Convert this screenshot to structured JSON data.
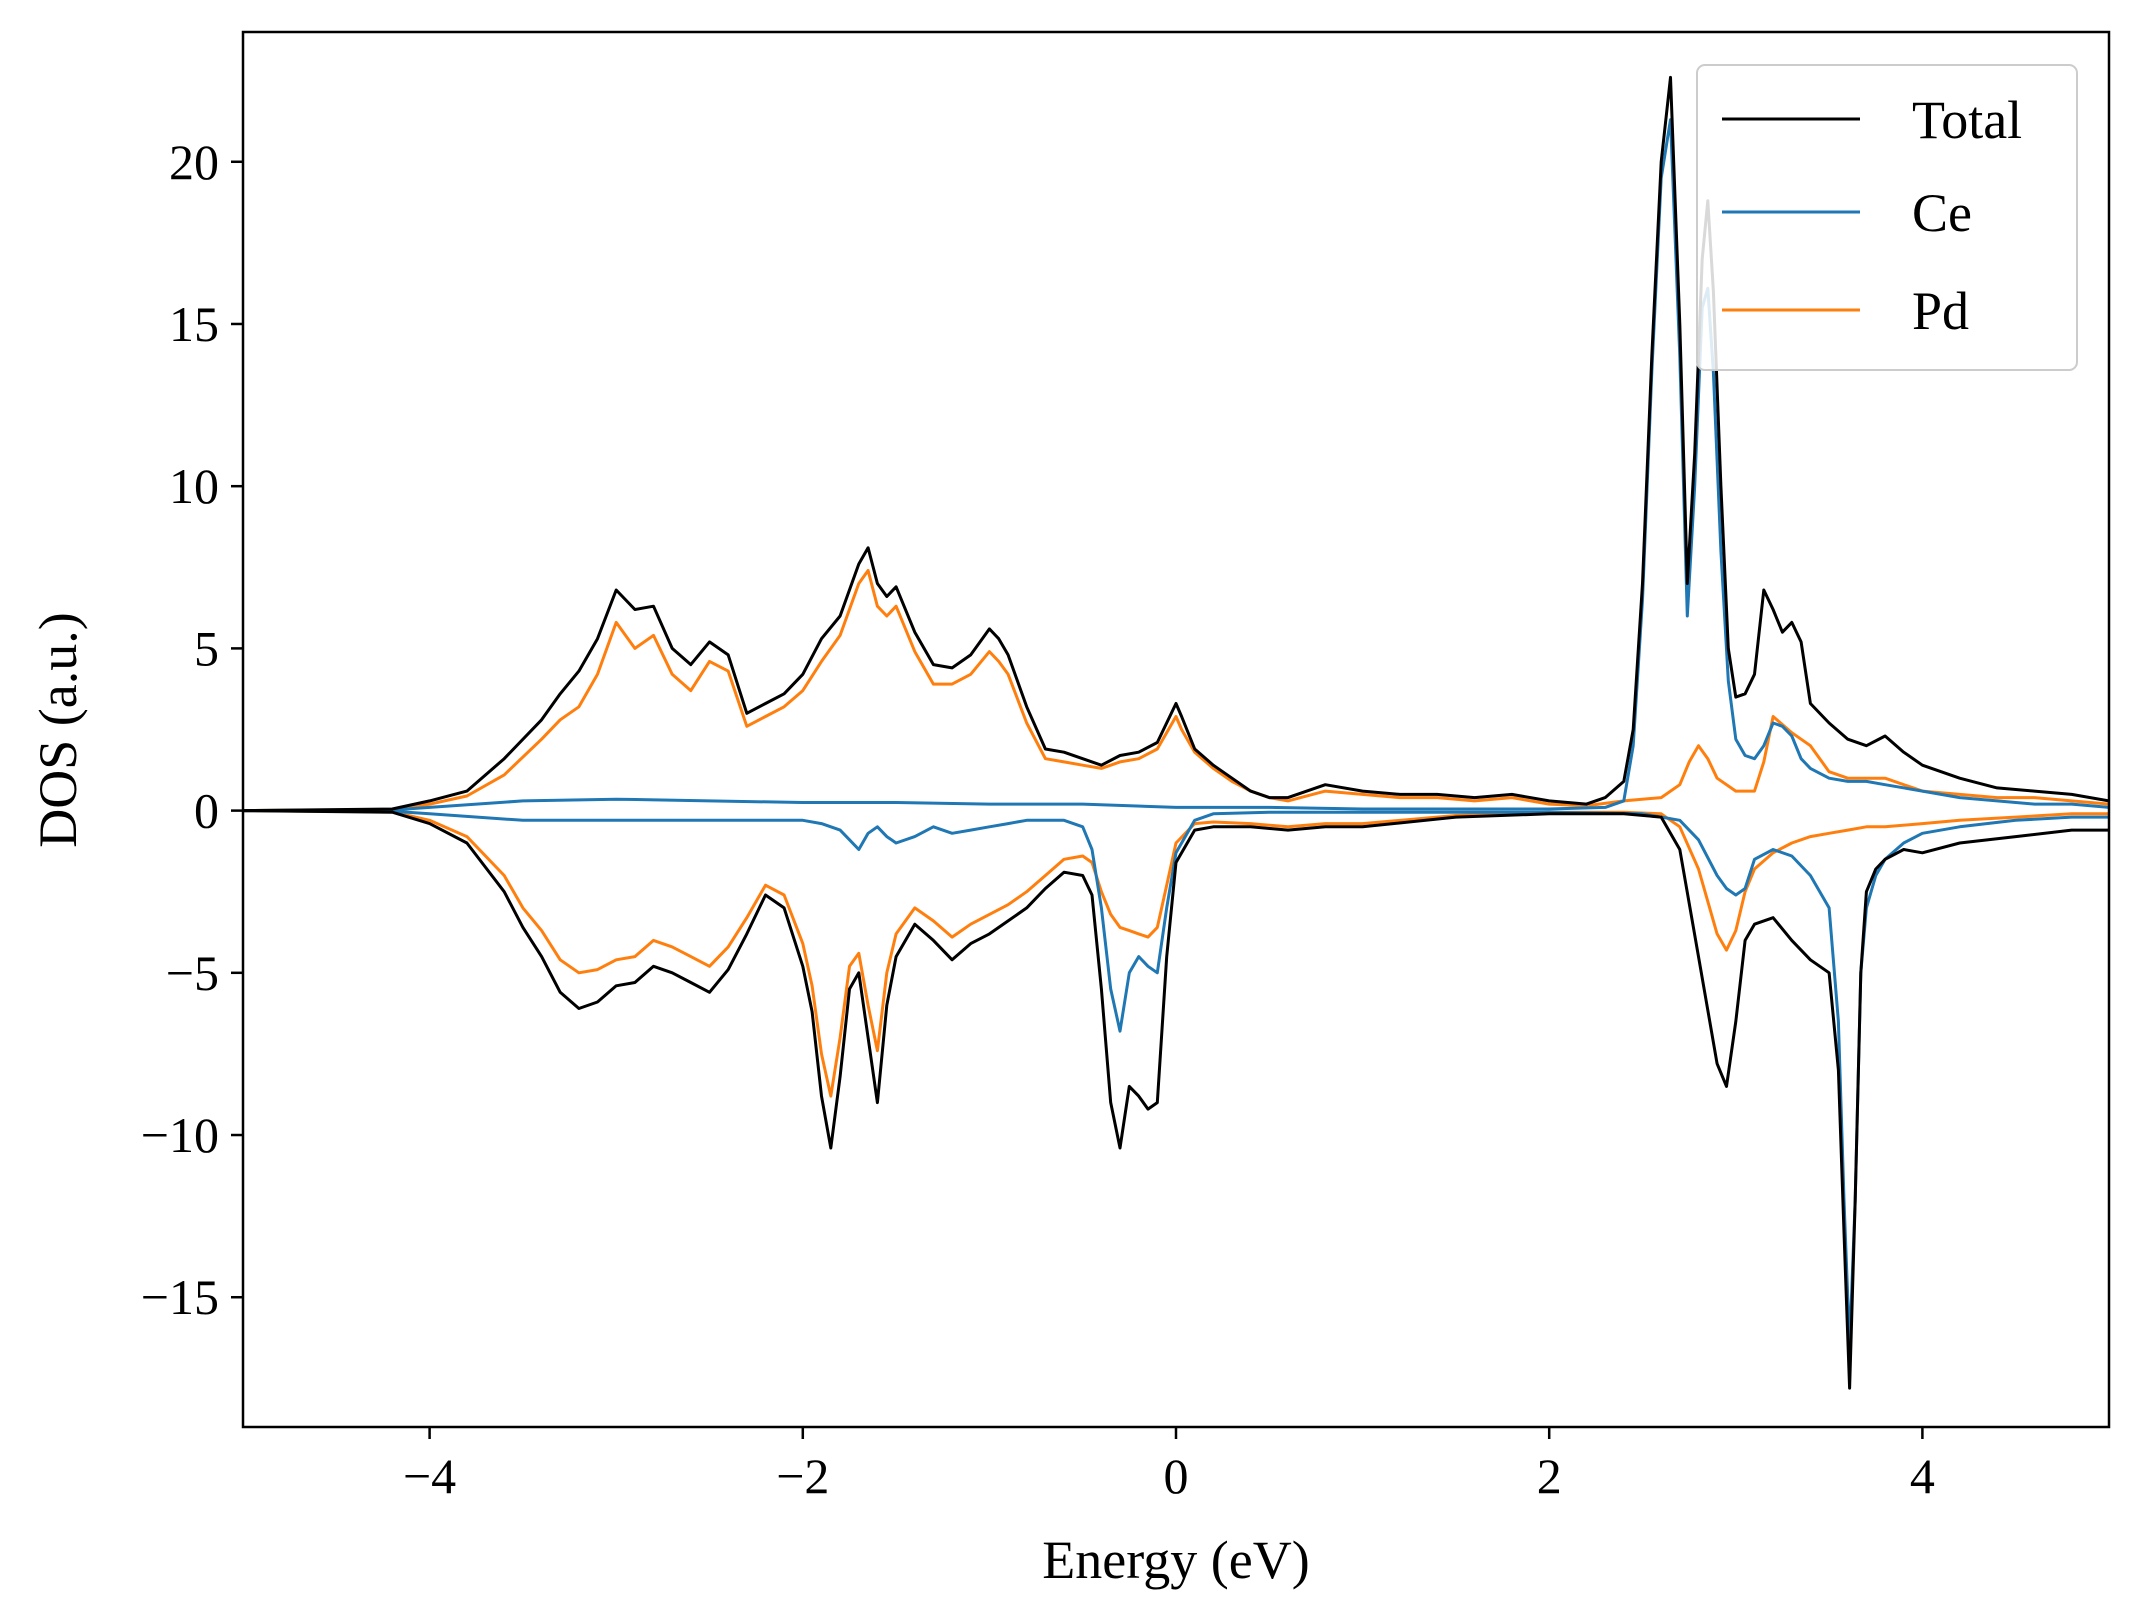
{
  "chart_data": {
    "type": "line",
    "title": "",
    "xlabel": "Energy (eV)",
    "ylabel": "DOS (a.u.)",
    "xlim": [
      -5,
      5
    ],
    "ylim": [
      -19,
      24
    ],
    "xticks": [
      -4,
      -2,
      0,
      2,
      4
    ],
    "yticks": [
      -15,
      -10,
      -5,
      0,
      5,
      10,
      15,
      20
    ],
    "xtick_labels": [
      "−4",
      "−2",
      "0",
      "2",
      "4"
    ],
    "ytick_labels": [
      "−15",
      "−10",
      "−5",
      "0",
      "5",
      "10",
      "15",
      "20"
    ],
    "grid": false,
    "legend_position": "top-right",
    "legend": [
      {
        "name": "Total",
        "color": "#000000"
      },
      {
        "name": "Ce",
        "color": "#1f77b4"
      },
      {
        "name": "Pd",
        "color": "#ff7f0e"
      }
    ],
    "series": [
      {
        "name": "Total",
        "color": "#000000",
        "up": {
          "x": [
            -5.0,
            -4.2,
            -4.0,
            -3.8,
            -3.6,
            -3.4,
            -3.3,
            -3.2,
            -3.1,
            -3.0,
            -2.9,
            -2.8,
            -2.7,
            -2.6,
            -2.5,
            -2.4,
            -2.3,
            -2.2,
            -2.1,
            -2.0,
            -1.9,
            -1.8,
            -1.7,
            -1.65,
            -1.6,
            -1.55,
            -1.5,
            -1.4,
            -1.3,
            -1.2,
            -1.1,
            -1.0,
            -0.95,
            -0.9,
            -0.8,
            -0.7,
            -0.6,
            -0.5,
            -0.4,
            -0.3,
            -0.2,
            -0.1,
            0.0,
            0.03,
            0.1,
            0.2,
            0.3,
            0.4,
            0.5,
            0.6,
            0.8,
            1.0,
            1.2,
            1.4,
            1.6,
            1.8,
            2.0,
            2.2,
            2.3,
            2.4,
            2.45,
            2.5,
            2.55,
            2.6,
            2.65,
            2.7,
            2.74,
            2.78,
            2.82,
            2.85,
            2.88,
            2.92,
            2.96,
            3.0,
            3.05,
            3.1,
            3.15,
            3.2,
            3.25,
            3.3,
            3.35,
            3.4,
            3.5,
            3.6,
            3.7,
            3.8,
            3.9,
            4.0,
            4.2,
            4.4,
            4.6,
            4.8,
            5.0
          ],
          "y": [
            0.0,
            0.05,
            0.3,
            0.6,
            1.6,
            2.8,
            3.6,
            4.3,
            5.3,
            6.8,
            6.2,
            6.3,
            5.0,
            4.5,
            5.2,
            4.8,
            3.0,
            3.3,
            3.6,
            4.2,
            5.3,
            6.0,
            7.6,
            8.1,
            7.0,
            6.6,
            6.9,
            5.5,
            4.5,
            4.4,
            4.8,
            5.6,
            5.3,
            4.8,
            3.2,
            1.9,
            1.8,
            1.6,
            1.4,
            1.7,
            1.8,
            2.1,
            3.3,
            2.9,
            1.9,
            1.4,
            1.0,
            0.6,
            0.4,
            0.4,
            0.8,
            0.6,
            0.5,
            0.5,
            0.4,
            0.5,
            0.3,
            0.2,
            0.4,
            0.9,
            2.5,
            7.0,
            14.0,
            20.0,
            22.6,
            15.0,
            7.0,
            11.0,
            17.0,
            18.8,
            16.0,
            10.0,
            5.0,
            3.5,
            3.6,
            4.2,
            6.8,
            6.2,
            5.5,
            5.8,
            5.2,
            3.3,
            2.7,
            2.2,
            2.0,
            2.3,
            1.8,
            1.4,
            1.0,
            0.7,
            0.6,
            0.5,
            0.3
          ]
        },
        "down": {
          "x": [
            -5.0,
            -4.2,
            -4.0,
            -3.8,
            -3.6,
            -3.5,
            -3.4,
            -3.3,
            -3.2,
            -3.1,
            -3.0,
            -2.9,
            -2.8,
            -2.7,
            -2.6,
            -2.5,
            -2.4,
            -2.3,
            -2.2,
            -2.1,
            -2.0,
            -1.95,
            -1.9,
            -1.85,
            -1.8,
            -1.75,
            -1.7,
            -1.65,
            -1.6,
            -1.55,
            -1.5,
            -1.4,
            -1.3,
            -1.2,
            -1.1,
            -1.0,
            -0.9,
            -0.8,
            -0.7,
            -0.6,
            -0.5,
            -0.45,
            -0.4,
            -0.35,
            -0.3,
            -0.25,
            -0.2,
            -0.15,
            -0.1,
            -0.05,
            0.0,
            0.1,
            0.2,
            0.4,
            0.6,
            0.8,
            1.0,
            1.5,
            2.0,
            2.4,
            2.6,
            2.7,
            2.8,
            2.9,
            2.95,
            3.0,
            3.05,
            3.1,
            3.2,
            3.3,
            3.4,
            3.5,
            3.55,
            3.58,
            3.61,
            3.64,
            3.67,
            3.7,
            3.75,
            3.8,
            3.9,
            4.0,
            4.2,
            4.5,
            4.8,
            5.0
          ],
          "y": [
            0.0,
            -0.05,
            -0.4,
            -1.0,
            -2.5,
            -3.6,
            -4.5,
            -5.6,
            -6.1,
            -5.9,
            -5.4,
            -5.3,
            -4.8,
            -5.0,
            -5.3,
            -5.6,
            -4.9,
            -3.8,
            -2.6,
            -3.0,
            -4.8,
            -6.2,
            -8.8,
            -10.4,
            -8.2,
            -5.5,
            -5.0,
            -7.0,
            -9.0,
            -6.0,
            -4.5,
            -3.5,
            -4.0,
            -4.6,
            -4.1,
            -3.8,
            -3.4,
            -3.0,
            -2.4,
            -1.9,
            -2.0,
            -2.6,
            -5.5,
            -9.0,
            -10.4,
            -8.5,
            -8.8,
            -9.2,
            -9.0,
            -4.5,
            -1.6,
            -0.6,
            -0.5,
            -0.5,
            -0.6,
            -0.5,
            -0.5,
            -0.2,
            -0.1,
            -0.1,
            -0.2,
            -1.2,
            -4.5,
            -7.8,
            -8.5,
            -6.5,
            -4.0,
            -3.5,
            -3.3,
            -4.0,
            -4.6,
            -5.0,
            -8.0,
            -13.0,
            -17.8,
            -12.0,
            -5.0,
            -2.5,
            -1.8,
            -1.5,
            -1.2,
            -1.3,
            -1.0,
            -0.8,
            -0.6,
            -0.6
          ]
        }
      },
      {
        "name": "Ce",
        "color": "#1f77b4",
        "up": {
          "x": [
            -5.0,
            -4.2,
            -4.0,
            -3.5,
            -3.0,
            -2.5,
            -2.0,
            -1.5,
            -1.0,
            -0.5,
            0.0,
            0.5,
            1.0,
            1.5,
            2.0,
            2.3,
            2.4,
            2.45,
            2.5,
            2.55,
            2.6,
            2.65,
            2.7,
            2.74,
            2.78,
            2.82,
            2.85,
            2.88,
            2.92,
            2.96,
            3.0,
            3.05,
            3.1,
            3.15,
            3.2,
            3.25,
            3.3,
            3.35,
            3.4,
            3.5,
            3.6,
            3.7,
            3.8,
            4.0,
            4.2,
            4.4,
            4.6,
            4.8,
            5.0
          ],
          "y": [
            0.0,
            0.02,
            0.1,
            0.3,
            0.35,
            0.3,
            0.25,
            0.25,
            0.2,
            0.2,
            0.1,
            0.1,
            0.05,
            0.05,
            0.05,
            0.1,
            0.3,
            2.0,
            6.5,
            13.5,
            19.5,
            21.3,
            14.0,
            6.0,
            10.0,
            15.5,
            16.1,
            13.5,
            8.0,
            4.0,
            2.2,
            1.7,
            1.6,
            2.0,
            2.7,
            2.6,
            2.3,
            1.6,
            1.3,
            1.0,
            0.9,
            0.9,
            0.8,
            0.6,
            0.4,
            0.3,
            0.2,
            0.2,
            0.1
          ]
        },
        "down": {
          "x": [
            -5.0,
            -4.2,
            -4.0,
            -3.5,
            -3.0,
            -2.5,
            -2.0,
            -1.9,
            -1.8,
            -1.75,
            -1.7,
            -1.65,
            -1.6,
            -1.55,
            -1.5,
            -1.4,
            -1.3,
            -1.2,
            -1.1,
            -1.0,
            -0.9,
            -0.8,
            -0.7,
            -0.6,
            -0.5,
            -0.45,
            -0.4,
            -0.35,
            -0.3,
            -0.25,
            -0.2,
            -0.15,
            -0.1,
            -0.05,
            0.0,
            0.1,
            0.2,
            0.5,
            1.0,
            1.5,
            2.0,
            2.5,
            2.7,
            2.8,
            2.9,
            2.95,
            3.0,
            3.05,
            3.1,
            3.2,
            3.3,
            3.4,
            3.5,
            3.55,
            3.58,
            3.61,
            3.64,
            3.67,
            3.7,
            3.75,
            3.8,
            3.9,
            4.0,
            4.2,
            4.5,
            4.8,
            5.0
          ],
          "y": [
            0.0,
            -0.02,
            -0.1,
            -0.3,
            -0.3,
            -0.3,
            -0.3,
            -0.4,
            -0.6,
            -0.9,
            -1.2,
            -0.7,
            -0.5,
            -0.8,
            -1.0,
            -0.8,
            -0.5,
            -0.7,
            -0.6,
            -0.5,
            -0.4,
            -0.3,
            -0.3,
            -0.3,
            -0.5,
            -1.2,
            -3.0,
            -5.5,
            -6.8,
            -5.0,
            -4.5,
            -4.8,
            -5.0,
            -3.0,
            -1.3,
            -0.3,
            -0.1,
            -0.05,
            -0.05,
            -0.05,
            -0.05,
            -0.1,
            -0.3,
            -0.9,
            -2.0,
            -2.4,
            -2.6,
            -2.4,
            -1.5,
            -1.2,
            -1.4,
            -2.0,
            -3.0,
            -6.5,
            -12.0,
            -16.5,
            -12.0,
            -5.0,
            -3.0,
            -2.0,
            -1.5,
            -1.0,
            -0.7,
            -0.5,
            -0.3,
            -0.2,
            -0.2
          ]
        }
      },
      {
        "name": "Pd",
        "color": "#ff7f0e",
        "up": {
          "x": [
            -5.0,
            -4.2,
            -4.0,
            -3.8,
            -3.6,
            -3.4,
            -3.3,
            -3.2,
            -3.1,
            -3.0,
            -2.9,
            -2.8,
            -2.7,
            -2.6,
            -2.5,
            -2.4,
            -2.3,
            -2.2,
            -2.1,
            -2.0,
            -1.9,
            -1.8,
            -1.7,
            -1.65,
            -1.6,
            -1.55,
            -1.5,
            -1.4,
            -1.3,
            -1.2,
            -1.1,
            -1.0,
            -0.95,
            -0.9,
            -0.8,
            -0.7,
            -0.6,
            -0.5,
            -0.4,
            -0.3,
            -0.2,
            -0.1,
            0.0,
            0.03,
            0.1,
            0.2,
            0.3,
            0.4,
            0.5,
            0.6,
            0.8,
            1.0,
            1.2,
            1.4,
            1.6,
            1.8,
            2.0,
            2.2,
            2.4,
            2.6,
            2.7,
            2.75,
            2.8,
            2.85,
            2.9,
            3.0,
            3.1,
            3.15,
            3.2,
            3.3,
            3.4,
            3.5,
            3.6,
            3.8,
            4.0,
            4.2,
            4.4,
            4.6,
            4.8,
            5.0
          ],
          "y": [
            0.0,
            0.03,
            0.2,
            0.45,
            1.1,
            2.2,
            2.8,
            3.2,
            4.2,
            5.8,
            5.0,
            5.4,
            4.2,
            3.7,
            4.6,
            4.3,
            2.6,
            2.9,
            3.2,
            3.7,
            4.6,
            5.4,
            7.0,
            7.4,
            6.3,
            6.0,
            6.3,
            4.9,
            3.9,
            3.9,
            4.2,
            4.9,
            4.6,
            4.2,
            2.7,
            1.6,
            1.5,
            1.4,
            1.3,
            1.5,
            1.6,
            1.9,
            2.9,
            2.5,
            1.8,
            1.3,
            0.9,
            0.6,
            0.4,
            0.3,
            0.6,
            0.5,
            0.4,
            0.4,
            0.3,
            0.4,
            0.2,
            0.15,
            0.3,
            0.4,
            0.8,
            1.5,
            2.0,
            1.6,
            1.0,
            0.6,
            0.6,
            1.5,
            2.9,
            2.4,
            2.0,
            1.2,
            1.0,
            1.0,
            0.6,
            0.5,
            0.4,
            0.4,
            0.3,
            0.2
          ]
        },
        "down": {
          "x": [
            -5.0,
            -4.2,
            -4.0,
            -3.8,
            -3.6,
            -3.5,
            -3.4,
            -3.3,
            -3.2,
            -3.1,
            -3.0,
            -2.9,
            -2.8,
            -2.7,
            -2.6,
            -2.5,
            -2.4,
            -2.3,
            -2.2,
            -2.1,
            -2.0,
            -1.95,
            -1.9,
            -1.85,
            -1.8,
            -1.75,
            -1.7,
            -1.65,
            -1.6,
            -1.55,
            -1.5,
            -1.4,
            -1.3,
            -1.2,
            -1.1,
            -1.0,
            -0.9,
            -0.8,
            -0.7,
            -0.6,
            -0.5,
            -0.45,
            -0.4,
            -0.35,
            -0.3,
            -0.25,
            -0.2,
            -0.15,
            -0.1,
            -0.05,
            0.0,
            0.1,
            0.2,
            0.4,
            0.6,
            0.8,
            1.0,
            1.5,
            2.0,
            2.4,
            2.6,
            2.7,
            2.8,
            2.9,
            2.95,
            3.0,
            3.05,
            3.1,
            3.2,
            3.3,
            3.4,
            3.5,
            3.6,
            3.7,
            3.8,
            4.0,
            4.2,
            4.5,
            4.8,
            5.0
          ],
          "y": [
            0.0,
            -0.04,
            -0.3,
            -0.8,
            -2.0,
            -3.0,
            -3.7,
            -4.6,
            -5.0,
            -4.9,
            -4.6,
            -4.5,
            -4.0,
            -4.2,
            -4.5,
            -4.8,
            -4.2,
            -3.3,
            -2.3,
            -2.6,
            -4.1,
            -5.4,
            -7.5,
            -8.8,
            -7.0,
            -4.8,
            -4.4,
            -6.0,
            -7.4,
            -5.0,
            -3.8,
            -3.0,
            -3.4,
            -3.9,
            -3.5,
            -3.2,
            -2.9,
            -2.5,
            -2.0,
            -1.5,
            -1.4,
            -1.6,
            -2.5,
            -3.2,
            -3.6,
            -3.7,
            -3.8,
            -3.9,
            -3.6,
            -2.3,
            -1.0,
            -0.4,
            -0.35,
            -0.4,
            -0.5,
            -0.4,
            -0.4,
            -0.15,
            -0.05,
            -0.05,
            -0.1,
            -0.5,
            -1.8,
            -3.8,
            -4.3,
            -3.7,
            -2.5,
            -1.8,
            -1.3,
            -1.0,
            -0.8,
            -0.7,
            -0.6,
            -0.5,
            -0.5,
            -0.4,
            -0.3,
            -0.2,
            -0.1,
            -0.1
          ]
        }
      }
    ]
  }
}
